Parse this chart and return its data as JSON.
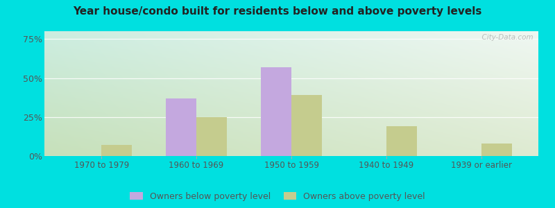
{
  "title": "Year house/condo built for residents below and above poverty levels",
  "categories": [
    "1970 to 1979",
    "1960 to 1969",
    "1950 to 1959",
    "1940 to 1949",
    "1939 or earlier"
  ],
  "below_poverty": [
    0,
    37,
    57,
    0,
    0
  ],
  "above_poverty": [
    7,
    25,
    39,
    19,
    8
  ],
  "below_color": "#c4a8df",
  "above_color": "#c5cc8e",
  "yticks": [
    0,
    25,
    50,
    75
  ],
  "ylim": [
    0,
    80
  ],
  "ylabel_labels": [
    "0%",
    "25%",
    "50%",
    "75%"
  ],
  "outer_bg": "#00e0e0",
  "bar_width": 0.32,
  "legend_below_label": "Owners below poverty level",
  "legend_above_label": "Owners above poverty level",
  "watermark": "  City-Data.com"
}
